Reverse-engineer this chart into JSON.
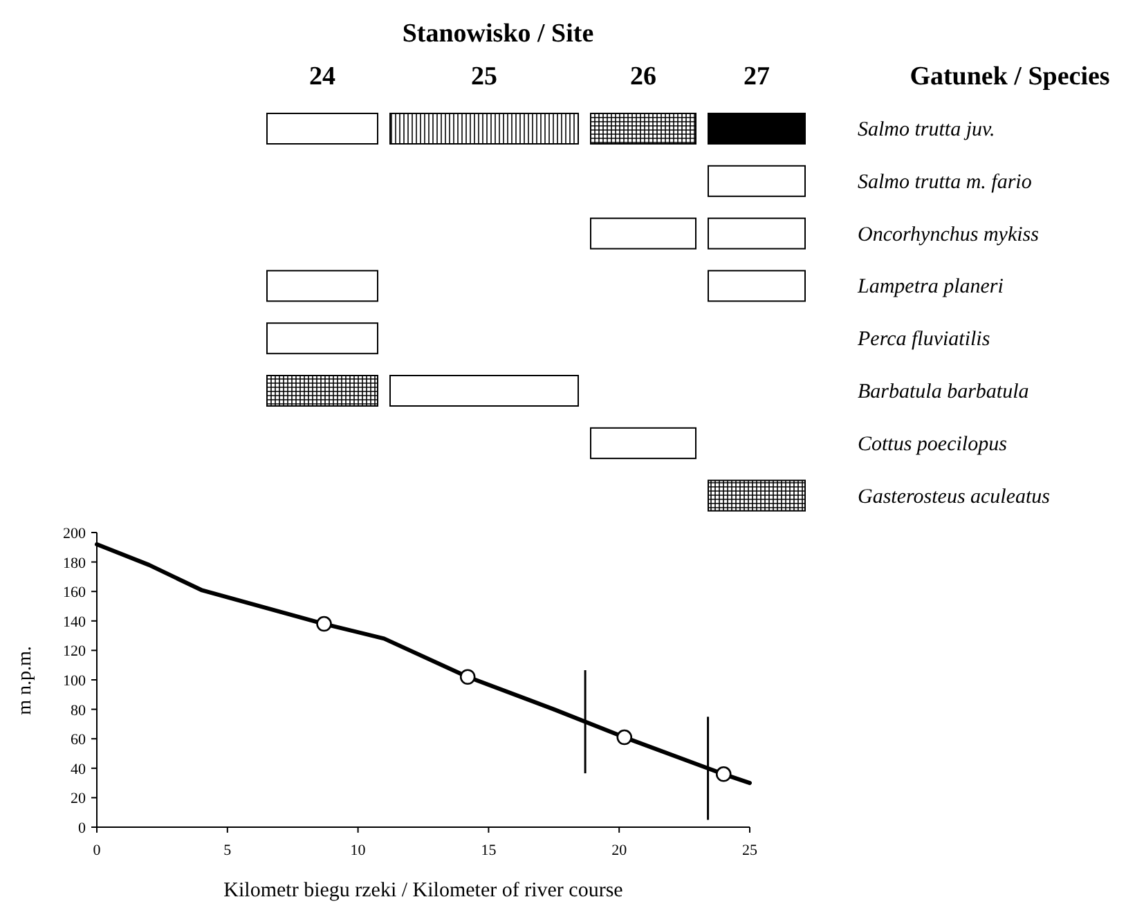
{
  "chart_data": [
    {
      "type": "other",
      "title": "Stanowisko / Site",
      "ylabel": "Gatunek / Species",
      "categories": [
        "24",
        "25",
        "26",
        "27"
      ],
      "y2_categories": [
        "Salmo trutta juv.",
        "Salmo trutta m. fario",
        "Oncorhynchus mykiss",
        "Lampetra planeri",
        "Perca fluviatilis",
        "Barbatula barbatula",
        "Cottus poecilopus",
        "Gasterosteus aculeatus"
      ]
    },
    {
      "type": "line",
      "xlabel": "Kilometr biegu rzeki / Kilometer of river course",
      "ylabel": "m n.p.m.",
      "xlim": [
        0,
        25
      ],
      "ylim": [
        0,
        200
      ],
      "xticks": [
        0,
        5,
        10,
        15,
        20,
        25
      ],
      "yticks": [
        0,
        20,
        40,
        60,
        80,
        100,
        120,
        140,
        160,
        180,
        200
      ],
      "series": [
        {
          "type": "line",
          "color": "#000000",
          "marker": "none",
          "x": [
            0,
            2,
            4,
            8.7,
            11,
            14.2,
            17.5,
            20.2,
            24,
            25
          ],
          "values": [
            192,
            178,
            161,
            138,
            128,
            102,
            80,
            61,
            36,
            30
          ]
        },
        {
          "type": "scatter",
          "color": "#ffffff",
          "marker": "circle",
          "x": [
            8.7,
            14.2,
            20.2,
            24
          ],
          "values": [
            138,
            102,
            61,
            36
          ]
        }
      ],
      "ref_lines": [
        {
          "axis": "x",
          "value": 18.7,
          "color": "#000000"
        },
        {
          "axis": "x",
          "value": 23.4,
          "color": "#000000"
        }
      ]
    }
  ]
}
